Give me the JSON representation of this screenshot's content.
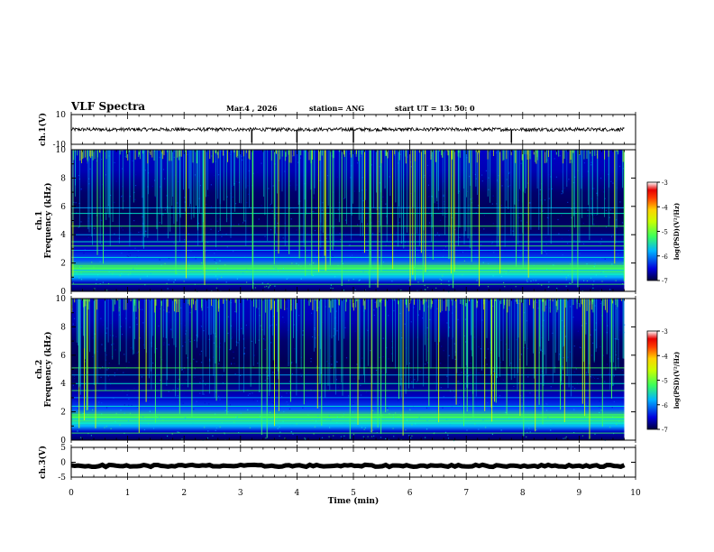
{
  "header": {
    "title": "VLF Spectra",
    "date": "Mar.4 , 2026",
    "station": "station= ANG",
    "start_ut": "start UT = 13: 50: 0"
  },
  "colors": {
    "spectrum": [
      "#000033",
      "#00006e",
      "#0000c8",
      "#0050ff",
      "#00b4ff",
      "#00ffd2",
      "#3cff5a",
      "#c8ff00",
      "#ffd200",
      "#ff5a00",
      "#e60000",
      "#ffffff"
    ],
    "line": "#000000"
  },
  "chart_data": [
    {
      "type": "line",
      "panel": "ch1-waveform",
      "ylabel": "ch.1(V)",
      "ylim": [
        -10,
        10
      ],
      "yticks": [
        "10",
        "-10"
      ],
      "baseline": 0,
      "noise_amplitude": 1.2,
      "spikes_at_min": [
        3.2,
        4.0,
        5.0,
        7.8
      ]
    },
    {
      "type": "heatmap",
      "panel": "ch1-spectrogram",
      "ylabel": "ch.1 Frequency (kHz)",
      "ylim": [
        0,
        10
      ],
      "yticks": [
        "0",
        "2",
        "4",
        "6",
        "8",
        "10"
      ],
      "horizontal_bands_khz": [
        0.5,
        1.2,
        1.5,
        1.8,
        2.4,
        2.9,
        3.2,
        3.5,
        4.0,
        4.6,
        5.5,
        5.9
      ],
      "colorbar": {
        "label": "log(PSD)(V²/Hz)",
        "ticks": [
          "-3",
          "-4",
          "-5",
          "-6",
          "-7"
        ],
        "range": [
          -7,
          -3
        ]
      }
    },
    {
      "type": "heatmap",
      "panel": "ch2-spectrogram",
      "ylabel": "ch.2 Frequency (kHz)",
      "ylim": [
        0,
        10
      ],
      "yticks": [
        "0",
        "2",
        "4",
        "6",
        "8",
        "10"
      ],
      "horizontal_bands_khz": [
        0.5,
        1.2,
        1.5,
        1.8,
        2.4,
        3.0,
        3.5,
        4.0,
        4.6,
        5.1
      ],
      "colorbar": {
        "label": "log(PSD)(V²/Hz)",
        "ticks": [
          "-3",
          "-4",
          "-5",
          "-6",
          "-7"
        ],
        "range": [
          -7,
          -3
        ]
      }
    },
    {
      "type": "line",
      "panel": "ch3-waveform",
      "ylabel": "ch.3(V)",
      "ylim": [
        -5,
        5
      ],
      "yticks": [
        "5",
        "0",
        "-5"
      ],
      "baseline": -1.2,
      "noise_amplitude": 0.35
    }
  ],
  "x_axis": {
    "label": "Time (min)",
    "range": [
      0,
      10
    ],
    "data_end_min": 9.8,
    "ticks": [
      "0",
      "1",
      "2",
      "3",
      "4",
      "5",
      "6",
      "7",
      "8",
      "9",
      "10"
    ]
  }
}
